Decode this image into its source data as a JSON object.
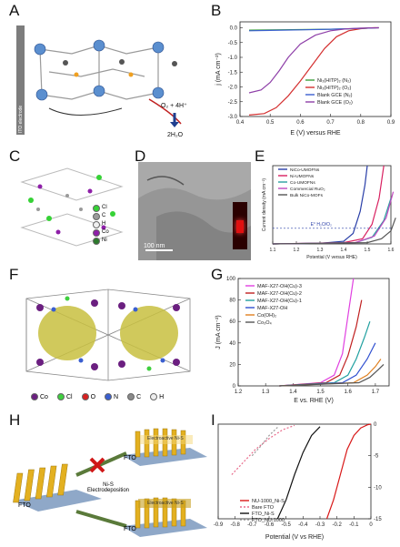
{
  "panels": {
    "A": {
      "label": "A",
      "electrode": "ITO electrode",
      "reaction_in": "O₂ + 4H⁺",
      "reaction_out": "2H₂O"
    },
    "B": {
      "label": "B"
    },
    "C": {
      "label": "C",
      "legend": [
        "Cl",
        "C",
        "H",
        "Co",
        "Ni"
      ],
      "legend_colors": [
        "#36d236",
        "#9a9a9a",
        "#f0f0f0",
        "#8e1fa8",
        "#2c7a2c"
      ]
    },
    "D": {
      "label": "D",
      "scalebar": "100 nm"
    },
    "E": {
      "label": "E"
    },
    "F": {
      "label": "F",
      "legend": [
        "Co",
        "Cl",
        "O",
        "N",
        "C",
        "H"
      ],
      "legend_colors": [
        "#6b1f80",
        "#3fcf3f",
        "#d82020",
        "#3a5fd0",
        "#8a8a8a",
        "#eeeeee"
      ]
    },
    "G": {
      "label": "G"
    },
    "H": {
      "label": "H",
      "fto_left": "FTO",
      "fto_top": "FTO",
      "fto_bottom": "FTO",
      "top_label": "Electroactive Ni-S",
      "bottom_label": "Electroactive Ni-S",
      "deposition": "Ni-S\nElectrodeposition"
    },
    "I": {
      "label": "I"
    }
  },
  "chart_data": [
    {
      "panel": "B",
      "type": "line",
      "xlabel": "E (V) versus RHE",
      "ylabel": "j (mA cm⁻²)",
      "xlim": [
        0.4,
        0.9
      ],
      "ylim": [
        -3.0,
        0.2
      ],
      "xticks": [
        "0.4",
        "0.5",
        "0.6",
        "0.7",
        "0.8",
        "0.9"
      ],
      "yticks": [
        "0.0",
        "-0.5",
        "-1.0",
        "-1.5",
        "-2.0",
        "-2.5",
        "-3.0"
      ],
      "series": [
        {
          "name": "Ni₃(HITP)₂ (N₂)",
          "color": "#3aa03a",
          "x": [
            0.43,
            0.5,
            0.6,
            0.7,
            0.78,
            0.85
          ],
          "y": [
            -0.08,
            -0.07,
            -0.06,
            -0.05,
            -0.03,
            0.0
          ]
        },
        {
          "name": "Ni₃(HITP)₂ (O₂)",
          "color": "#d43030",
          "x": [
            0.43,
            0.48,
            0.52,
            0.56,
            0.6,
            0.64,
            0.68,
            0.72,
            0.76,
            0.8,
            0.84,
            0.86
          ],
          "y": [
            -2.95,
            -2.9,
            -2.7,
            -2.3,
            -1.8,
            -1.25,
            -0.7,
            -0.3,
            -0.1,
            -0.03,
            0.0,
            0.0
          ]
        },
        {
          "name": "Blank GCE (N₂)",
          "color": "#3a5fd0",
          "x": [
            0.43,
            0.5,
            0.6,
            0.7,
            0.8,
            0.86
          ],
          "y": [
            -0.1,
            -0.09,
            -0.07,
            -0.05,
            -0.02,
            0.0
          ]
        },
        {
          "name": "Blank GCE (O₂)",
          "color": "#8e3fa8",
          "x": [
            0.43,
            0.47,
            0.5,
            0.53,
            0.56,
            0.6,
            0.65,
            0.7,
            0.75,
            0.8,
            0.86
          ],
          "y": [
            -2.2,
            -2.1,
            -1.85,
            -1.45,
            -1.0,
            -0.55,
            -0.25,
            -0.1,
            -0.04,
            -0.01,
            0.0
          ]
        }
      ]
    },
    {
      "panel": "E",
      "type": "line",
      "xlabel": "Potential (V versus RHE)",
      "ylabel": "Current density (mA cm⁻²)",
      "xlim": [
        1.1,
        1.6
      ],
      "ylim": [
        0,
        60
      ],
      "xticks": [
        "1.1",
        "1.2",
        "1.3",
        "1.4",
        "1.5",
        "1.6"
      ],
      "annotation": "E° H₂O/O₂",
      "series": [
        {
          "name": "NiCo-UMOFNs",
          "color": "#2a3fa8",
          "x": [
            1.1,
            1.3,
            1.4,
            1.44,
            1.47,
            1.49,
            1.5
          ],
          "y": [
            0,
            0.5,
            2,
            8,
            25,
            45,
            60
          ]
        },
        {
          "name": "Ni-UMOFNs",
          "color": "#d82060",
          "x": [
            1.1,
            1.4,
            1.48,
            1.52,
            1.55,
            1.57
          ],
          "y": [
            0,
            1,
            4,
            15,
            35,
            60
          ]
        },
        {
          "name": "Co-UMOFNs",
          "color": "#2aa0a0",
          "x": [
            1.1,
            1.45,
            1.52,
            1.57,
            1.6
          ],
          "y": [
            0,
            1,
            5,
            18,
            35
          ]
        },
        {
          "name": "Commercial RuO₂",
          "color": "#c04ac0",
          "x": [
            1.1,
            1.45,
            1.53,
            1.58,
            1.61
          ],
          "y": [
            0,
            1,
            6,
            20,
            40
          ]
        },
        {
          "name": "Bulk NiCo-MOFs",
          "color": "#555555",
          "x": [
            1.1,
            1.5,
            1.56,
            1.6,
            1.62
          ],
          "y": [
            0,
            1,
            4,
            10,
            20
          ]
        }
      ]
    },
    {
      "panel": "G",
      "type": "line",
      "xlabel": "E vs. RHE (V)",
      "ylabel": "J (mA cm⁻²)",
      "xlim": [
        1.2,
        1.75
      ],
      "ylim": [
        0,
        100
      ],
      "xticks": [
        "1.2",
        "1.3",
        "1.4",
        "1.5",
        "1.6",
        "1.7"
      ],
      "yticks": [
        "0",
        "20",
        "40",
        "60",
        "80",
        "100"
      ],
      "series": [
        {
          "name": "MAF-X27-OH(Cu)-3",
          "color": "#e040e0",
          "x": [
            1.35,
            1.5,
            1.55,
            1.58,
            1.6,
            1.62
          ],
          "y": [
            0,
            3,
            10,
            30,
            65,
            100
          ]
        },
        {
          "name": "MAF-X27-OH(Cu)-2",
          "color": "#c02020",
          "x": [
            1.35,
            1.52,
            1.57,
            1.6,
            1.63,
            1.65
          ],
          "y": [
            0,
            3,
            10,
            28,
            55,
            80
          ]
        },
        {
          "name": "MAF-X27-OH(Cu)-1",
          "color": "#20a0a0",
          "x": [
            1.35,
            1.55,
            1.6,
            1.63,
            1.66,
            1.68
          ],
          "y": [
            0,
            3,
            10,
            25,
            45,
            60
          ]
        },
        {
          "name": "MAF-X27-OH",
          "color": "#3050d0",
          "x": [
            1.35,
            1.58,
            1.63,
            1.67,
            1.7
          ],
          "y": [
            0,
            3,
            10,
            25,
            40
          ]
        },
        {
          "name": "Co(OH)₂",
          "color": "#e08020",
          "x": [
            1.35,
            1.62,
            1.67,
            1.7,
            1.72
          ],
          "y": [
            0,
            3,
            10,
            18,
            25
          ]
        },
        {
          "name": "Co₃O₄",
          "color": "#555555",
          "x": [
            1.35,
            1.64,
            1.68,
            1.71,
            1.73
          ],
          "y": [
            0,
            3,
            8,
            15,
            20
          ]
        }
      ]
    },
    {
      "panel": "I",
      "type": "line",
      "xlabel": "Potential (V vs RHE)",
      "ylabel": "",
      "xlim": [
        -0.9,
        0.0
      ],
      "ylim": [
        -15,
        0
      ],
      "xticks": [
        "-0.9",
        "-0.8",
        "-0.7",
        "-0.6",
        "-0.5",
        "-0.4",
        "-0.3",
        "-0.2",
        "-0.1",
        "0"
      ],
      "yticks": [
        "0",
        "-5",
        "-10",
        "-15"
      ],
      "series": [
        {
          "name": "NU-1000_Ni-S",
          "color": "#d81818",
          "x": [
            -0.26,
            -0.22,
            -0.18,
            -0.14,
            -0.1,
            -0.06,
            -0.02,
            0.0
          ],
          "y": [
            -15,
            -12,
            -8,
            -4,
            -1.8,
            -0.6,
            -0.1,
            0
          ]
        },
        {
          "name": "Bare FTO",
          "color": "#e86a8a",
          "dash": true,
          "x": [
            -0.82,
            -0.75,
            -0.68,
            -0.6,
            -0.52,
            -0.45
          ],
          "y": [
            -8,
            -6,
            -4,
            -2.3,
            -0.9,
            -0.2
          ]
        },
        {
          "name": "FTO_Ni-S",
          "color": "#111111",
          "x": [
            -0.55,
            -0.5,
            -0.45,
            -0.4,
            -0.35,
            -0.3
          ],
          "y": [
            -15,
            -12,
            -8,
            -4.5,
            -1.8,
            -0.4
          ]
        },
        {
          "name": "FTO_NU-1000",
          "color": "#999999",
          "dash": true,
          "x": [
            -0.7,
            -0.65,
            -0.6,
            -0.55
          ],
          "y": [
            -5,
            -3.5,
            -1.8,
            -0.5
          ]
        }
      ]
    }
  ]
}
